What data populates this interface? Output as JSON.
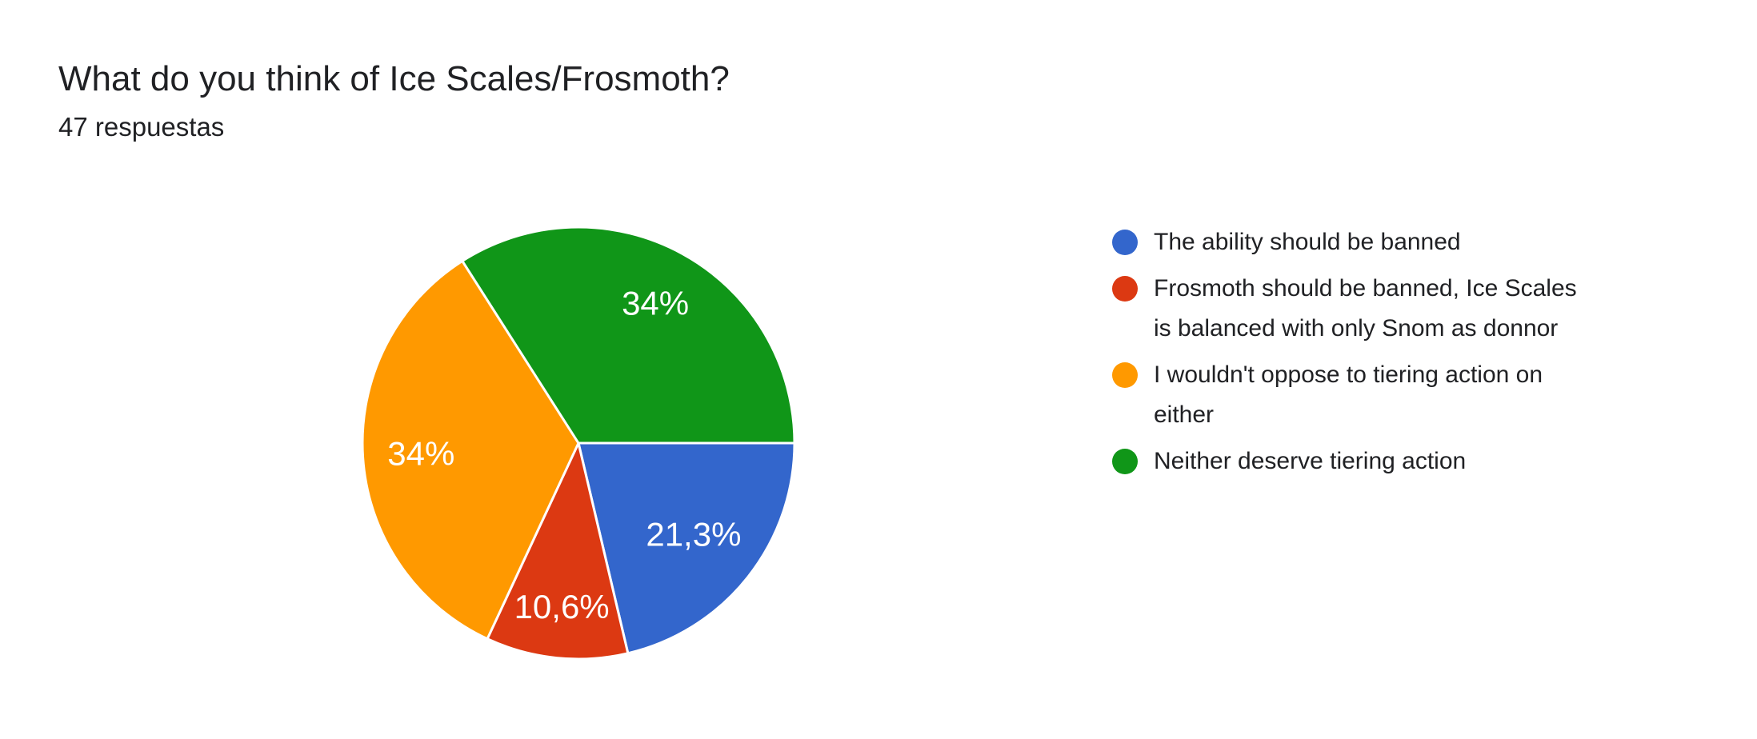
{
  "header": {
    "title": "What do you think of Ice Scales/Frosmoth?",
    "response_count": "47 respuestas"
  },
  "chart_data": {
    "type": "pie",
    "title": "What do you think of Ice Scales/Frosmoth?",
    "subtitle": "47 respuestas",
    "legend_position": "right",
    "start_angle": "east",
    "direction": "clockwise",
    "slices": [
      {
        "label": "The ability should be banned",
        "percent": 21.3,
        "percent_label": "21,3%",
        "color": "#3366CC"
      },
      {
        "label": "Frosmoth should be banned, Ice Scales is balanced with only Snom as donnor",
        "percent": 10.6,
        "percent_label": "10,6%",
        "color": "#DC3912"
      },
      {
        "label": "I wouldn't oppose to tiering action on either",
        "percent": 34,
        "percent_label": "34%",
        "color": "#FF9900"
      },
      {
        "label": "Neither deserve tiering action",
        "percent": 34,
        "percent_label": "34%",
        "color": "#109618"
      }
    ]
  }
}
